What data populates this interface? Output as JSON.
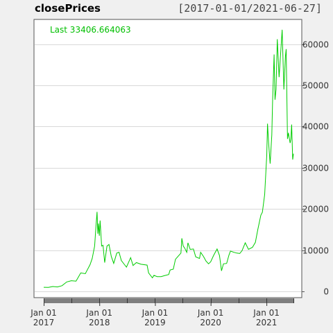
{
  "title": "closePrices",
  "date_range": "[2017-01-01/2021-06-27]",
  "colors": {
    "line": "#00cc00",
    "last_label": "#00bf00",
    "grid": "#d9d9d9",
    "panel_bg": "#ffffff",
    "page_bg": "#f0f0f0",
    "axis_bar": "#7f7f7f"
  },
  "chart_data": {
    "type": "line",
    "title": "closePrices",
    "last_label": "Last 33406.664063",
    "x_range": [
      "2017-01-01",
      "2021-06-27"
    ],
    "y_ticks": [
      0,
      10000,
      20000,
      30000,
      40000,
      50000,
      60000
    ],
    "y_tick_labels": [
      "0",
      "10000",
      "20000",
      "30000",
      "40000",
      "50000",
      "60000"
    ],
    "ylim": [
      -1500,
      66000
    ],
    "x_ticks": [
      {
        "date": "2017-01-01",
        "line1": "Jan 01",
        "line2": "2017"
      },
      {
        "date": "2018-01-01",
        "line1": "Jan 01",
        "line2": "2018"
      },
      {
        "date": "2019-01-01",
        "line1": "Jan 01",
        "line2": "2019"
      },
      {
        "date": "2020-01-01",
        "line1": "Jan 01",
        "line2": "2020"
      },
      {
        "date": "2021-01-01",
        "line1": "Jan 01",
        "line2": "2021"
      }
    ],
    "x_minor_ticks": [
      "2017-01-01",
      "2017-07-01",
      "2018-01-01",
      "2018-07-01",
      "2019-01-01",
      "2019-07-01",
      "2020-01-01",
      "2020-07-01",
      "2021-01-01",
      "2021-06-27"
    ],
    "grid": true,
    "series": [
      {
        "values": [
          [
            "2017-01-01",
            1000
          ],
          [
            "2017-02-01",
            980
          ],
          [
            "2017-03-01",
            1200
          ],
          [
            "2017-04-01",
            1100
          ],
          [
            "2017-05-01",
            1400
          ],
          [
            "2017-06-01",
            2300
          ],
          [
            "2017-07-01",
            2600
          ],
          [
            "2017-08-01",
            2500
          ],
          [
            "2017-09-01",
            4500
          ],
          [
            "2017-10-01",
            4300
          ],
          [
            "2017-11-01",
            6500
          ],
          [
            "2017-11-15",
            8000
          ],
          [
            "2017-12-01",
            11000
          ],
          [
            "2017-12-10",
            16000
          ],
          [
            "2017-12-17",
            19300
          ],
          [
            "2017-12-22",
            14000
          ],
          [
            "2017-12-26",
            16500
          ],
          [
            "2018-01-01",
            13500
          ],
          [
            "2018-01-06",
            17200
          ],
          [
            "2018-01-16",
            11000
          ],
          [
            "2018-01-25",
            11200
          ],
          [
            "2018-02-05",
            7000
          ],
          [
            "2018-02-20",
            11000
          ],
          [
            "2018-03-05",
            11400
          ],
          [
            "2018-03-20",
            8500
          ],
          [
            "2018-04-05",
            6800
          ],
          [
            "2018-04-25",
            9300
          ],
          [
            "2018-05-10",
            9500
          ],
          [
            "2018-05-25",
            7500
          ],
          [
            "2018-06-15",
            6500
          ],
          [
            "2018-06-28",
            5900
          ],
          [
            "2018-07-25",
            8200
          ],
          [
            "2018-08-10",
            6300
          ],
          [
            "2018-09-01",
            7000
          ],
          [
            "2018-10-01",
            6600
          ],
          [
            "2018-11-10",
            6400
          ],
          [
            "2018-11-20",
            4500
          ],
          [
            "2018-12-15",
            3300
          ],
          [
            "2018-12-25",
            3900
          ],
          [
            "2019-01-15",
            3600
          ],
          [
            "2019-02-10",
            3600
          ],
          [
            "2019-03-01",
            3800
          ],
          [
            "2019-04-01",
            4100
          ],
          [
            "2019-04-10",
            5200
          ],
          [
            "2019-05-01",
            5400
          ],
          [
            "2019-05-15",
            7800
          ],
          [
            "2019-06-01",
            8500
          ],
          [
            "2019-06-20",
            9300
          ],
          [
            "2019-06-26",
            12900
          ],
          [
            "2019-07-05",
            11000
          ],
          [
            "2019-07-15",
            10500
          ],
          [
            "2019-07-28",
            9500
          ],
          [
            "2019-08-05",
            11800
          ],
          [
            "2019-08-20",
            10200
          ],
          [
            "2019-09-10",
            10300
          ],
          [
            "2019-09-25",
            8400
          ],
          [
            "2019-10-20",
            8000
          ],
          [
            "2019-10-27",
            9500
          ],
          [
            "2019-11-15",
            8500
          ],
          [
            "2019-12-01",
            7400
          ],
          [
            "2019-12-18",
            6700
          ],
          [
            "2020-01-01",
            7200
          ],
          [
            "2020-01-20",
            8700
          ],
          [
            "2020-02-12",
            10300
          ],
          [
            "2020-02-28",
            8700
          ],
          [
            "2020-03-12",
            5000
          ],
          [
            "2020-03-25",
            6700
          ],
          [
            "2020-04-15",
            6800
          ],
          [
            "2020-04-30",
            8800
          ],
          [
            "2020-05-10",
            9800
          ],
          [
            "2020-06-01",
            9500
          ],
          [
            "2020-06-20",
            9300
          ],
          [
            "2020-07-10",
            9200
          ],
          [
            "2020-07-25",
            9900
          ],
          [
            "2020-08-15",
            11800
          ],
          [
            "2020-09-05",
            10200
          ],
          [
            "2020-10-01",
            10700
          ],
          [
            "2020-10-20",
            11900
          ],
          [
            "2020-11-05",
            15000
          ],
          [
            "2020-11-25",
            18500
          ],
          [
            "2020-12-05",
            19200
          ],
          [
            "2020-12-20",
            23500
          ],
          [
            "2021-01-03",
            33000
          ],
          [
            "2021-01-08",
            40700
          ],
          [
            "2021-01-15",
            36000
          ],
          [
            "2021-01-25",
            31000
          ],
          [
            "2021-02-05",
            38000
          ],
          [
            "2021-02-10",
            46000
          ],
          [
            "2021-02-20",
            57500
          ],
          [
            "2021-02-26",
            46500
          ],
          [
            "2021-03-05",
            49000
          ],
          [
            "2021-03-13",
            61200
          ],
          [
            "2021-03-25",
            52000
          ],
          [
            "2021-04-05",
            58500
          ],
          [
            "2021-04-14",
            63500
          ],
          [
            "2021-04-25",
            49000
          ],
          [
            "2021-05-05",
            57000
          ],
          [
            "2021-05-10",
            58800
          ],
          [
            "2021-05-19",
            37000
          ],
          [
            "2021-05-25",
            38500
          ],
          [
            "2021-06-05",
            36000
          ],
          [
            "2021-06-10",
            37000
          ],
          [
            "2021-06-15",
            40500
          ],
          [
            "2021-06-22",
            32000
          ],
          [
            "2021-06-27",
            33406
          ]
        ]
      }
    ]
  }
}
